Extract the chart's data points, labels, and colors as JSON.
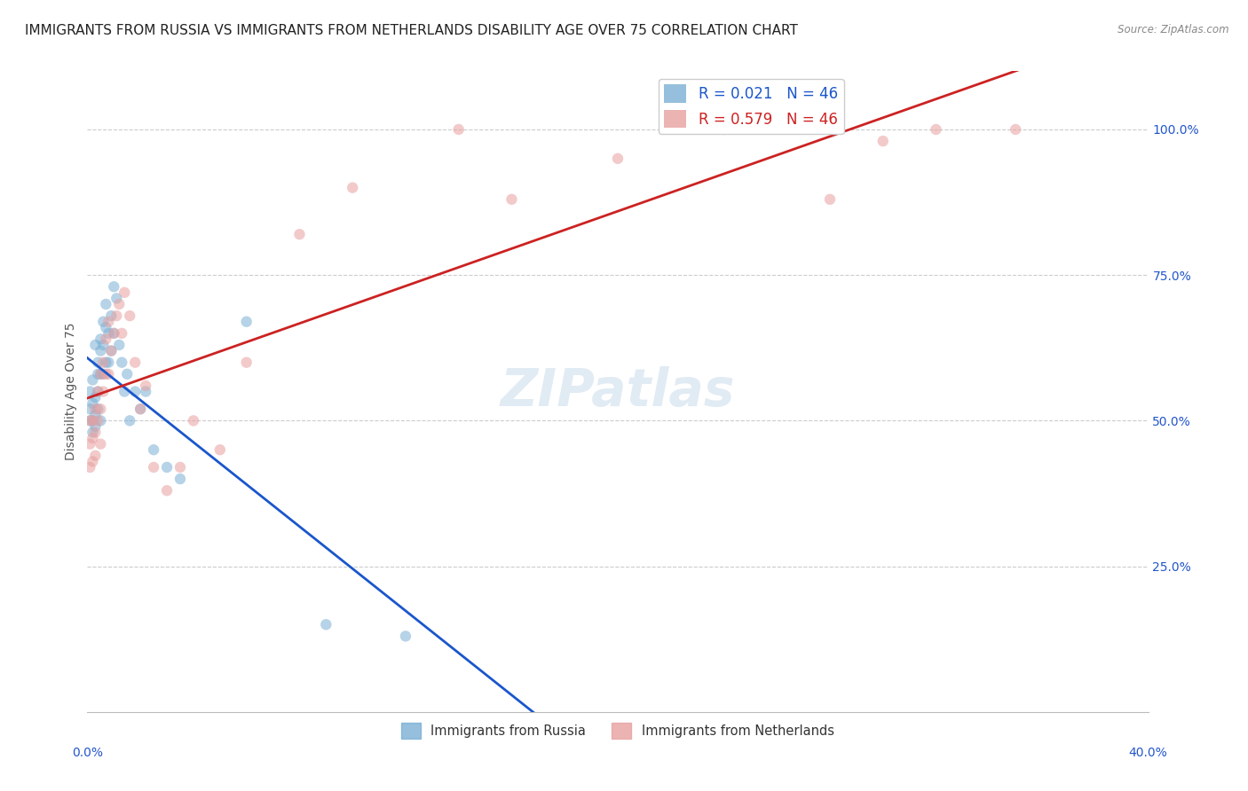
{
  "title": "IMMIGRANTS FROM RUSSIA VS IMMIGRANTS FROM NETHERLANDS DISABILITY AGE OVER 75 CORRELATION CHART",
  "source": "Source: ZipAtlas.com",
  "ylabel": "Disability Age Over 75",
  "russia_color": "#7bafd4",
  "netherlands_color": "#e8a0a0",
  "russia_line_color": "#1a56cc",
  "netherlands_line_color": "#cc2222",
  "background_color": "#ffffff",
  "watermark": "ZIPatlas",
  "legend_russia_r": "0.021",
  "legend_russia_n": "46",
  "legend_netherlands_r": "0.579",
  "legend_netherlands_n": "46",
  "russia_x": [
    0.001,
    0.001,
    0.001,
    0.002,
    0.002,
    0.002,
    0.002,
    0.003,
    0.003,
    0.003,
    0.003,
    0.004,
    0.004,
    0.004,
    0.004,
    0.005,
    0.005,
    0.005,
    0.005,
    0.006,
    0.006,
    0.006,
    0.007,
    0.007,
    0.007,
    0.008,
    0.008,
    0.009,
    0.009,
    0.01,
    0.01,
    0.011,
    0.012,
    0.013,
    0.014,
    0.015,
    0.016,
    0.018,
    0.02,
    0.022,
    0.025,
    0.03,
    0.035,
    0.06,
    0.09,
    0.12
  ],
  "russia_y": [
    0.5,
    0.52,
    0.55,
    0.5,
    0.53,
    0.57,
    0.48,
    0.51,
    0.54,
    0.49,
    0.63,
    0.6,
    0.58,
    0.55,
    0.52,
    0.64,
    0.62,
    0.58,
    0.5,
    0.67,
    0.63,
    0.58,
    0.7,
    0.66,
    0.6,
    0.65,
    0.6,
    0.68,
    0.62,
    0.73,
    0.65,
    0.71,
    0.63,
    0.6,
    0.55,
    0.58,
    0.5,
    0.55,
    0.52,
    0.55,
    0.45,
    0.42,
    0.4,
    0.67,
    0.15,
    0.13
  ],
  "netherlands_x": [
    0.001,
    0.001,
    0.001,
    0.002,
    0.002,
    0.002,
    0.003,
    0.003,
    0.003,
    0.004,
    0.004,
    0.005,
    0.005,
    0.005,
    0.006,
    0.006,
    0.007,
    0.007,
    0.008,
    0.008,
    0.009,
    0.01,
    0.011,
    0.012,
    0.013,
    0.014,
    0.016,
    0.018,
    0.02,
    0.022,
    0.025,
    0.03,
    0.035,
    0.04,
    0.05,
    0.06,
    0.08,
    0.1,
    0.14,
    0.16,
    0.2,
    0.24,
    0.28,
    0.3,
    0.32,
    0.35
  ],
  "netherlands_y": [
    0.5,
    0.46,
    0.42,
    0.5,
    0.47,
    0.43,
    0.52,
    0.48,
    0.44,
    0.55,
    0.5,
    0.58,
    0.52,
    0.46,
    0.6,
    0.55,
    0.64,
    0.58,
    0.67,
    0.58,
    0.62,
    0.65,
    0.68,
    0.7,
    0.65,
    0.72,
    0.68,
    0.6,
    0.52,
    0.56,
    0.42,
    0.38,
    0.42,
    0.5,
    0.45,
    0.6,
    0.82,
    0.9,
    1.0,
    0.88,
    0.95,
    1.0,
    0.88,
    0.98,
    1.0,
    1.0
  ],
  "xlim": [
    0.0,
    0.4
  ],
  "ylim": [
    0.0,
    1.1
  ],
  "yticks": [
    0.25,
    0.5,
    0.75,
    1.0
  ],
  "ytick_labels": [
    "25.0%",
    "50.0%",
    "75.0%",
    "100.0%"
  ],
  "title_fontsize": 11,
  "axis_label_fontsize": 10,
  "tick_fontsize": 10,
  "legend_fontsize": 12,
  "marker_size": 80,
  "marker_alpha": 0.55
}
